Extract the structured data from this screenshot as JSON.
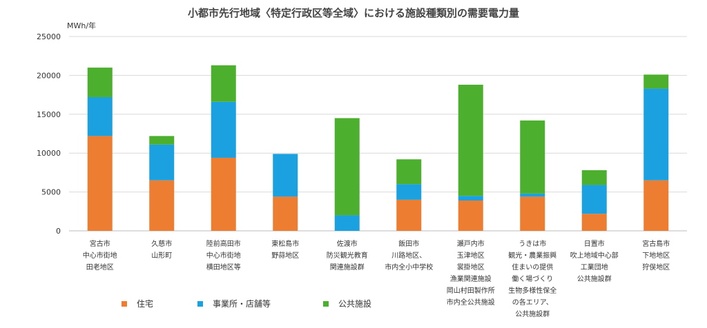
{
  "chart_data": {
    "type": "bar",
    "stacked": true,
    "title": "小都市先行地域〈特定行政区等全域〉における施設種類別の需要電力量",
    "ylabel": "MWh/年",
    "ylim": [
      0,
      25000
    ],
    "yticks": [
      "0",
      "5000",
      "10000",
      "15000",
      "20000",
      "25000"
    ],
    "grid": true,
    "legend_position": "bottom-left",
    "categories": [
      "宮古市\n中心市街地\n田老地区",
      "久慈市\n山形町",
      "陸前高田市\n中心市街地\n横田地区等",
      "東松島市\n野蒜地区",
      "佐渡市\n防災観光教育\n関連施設群",
      "飯田市\n川路地区、\n市内全小中学校",
      "瀬戸内市\n玉津地区\n裳掛地区\n漁業関連施設\n岡山村田製作所\n市内全公共施設",
      "うきは市\n観光・農業振興\n住まいの提供\n働く場づくり\n生物多様性保全\nの各エリア、\n公共施設群",
      "日置市\n吹上地域中心部\n工業団地\n公共施設群",
      "宮古島市\n下地地区\n狩俣地区"
    ],
    "series": [
      {
        "name": "住宅",
        "color": "#ED7D31",
        "values": [
          12200,
          6500,
          9400,
          4400,
          0,
          4000,
          3900,
          4400,
          2200,
          6500
        ]
      },
      {
        "name": "事業所・店舗等",
        "color": "#1BA1DF",
        "values": [
          5000,
          4600,
          7200,
          5500,
          2000,
          2000,
          600,
          400,
          3700,
          11800
        ]
      },
      {
        "name": "公共施設",
        "color": "#4DAF2E",
        "values": [
          3800,
          1100,
          4700,
          0,
          12500,
          3200,
          14300,
          9400,
          1900,
          1800
        ]
      }
    ]
  }
}
